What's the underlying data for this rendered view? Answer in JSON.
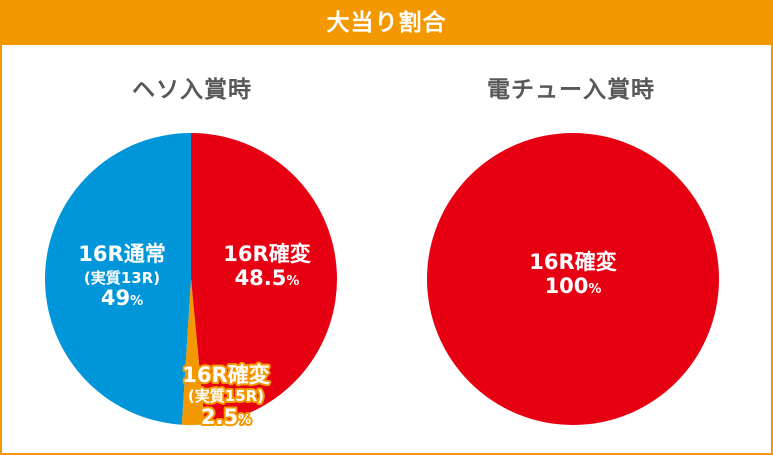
{
  "header": {
    "title": "大当り割合"
  },
  "colors": {
    "accent": "#f39800",
    "blue": "#0096d9",
    "red": "#e60012",
    "orange": "#f39800",
    "title_text": "#595757",
    "white": "#ffffff"
  },
  "chart_data": [
    {
      "type": "pie",
      "title": "ヘソ入賞時",
      "slices": [
        {
          "label": "16R確変",
          "value": 48.5,
          "value_text": "48.5",
          "unit": "%",
          "color": "#e60012"
        },
        {
          "label": "16R確変",
          "sublabel": "(実質15R)",
          "value": 2.5,
          "value_text": "2.5",
          "unit": "%",
          "color": "#f39800"
        },
        {
          "label": "16R通常",
          "sublabel": "(実質13R)",
          "value": 49,
          "value_text": "49",
          "unit": "%",
          "color": "#0096d9"
        }
      ]
    },
    {
      "type": "pie",
      "title": "電チュー入賞時",
      "slices": [
        {
          "label": "16R確変",
          "value": 100,
          "value_text": "100",
          "unit": "%",
          "color": "#e60012"
        }
      ]
    }
  ]
}
